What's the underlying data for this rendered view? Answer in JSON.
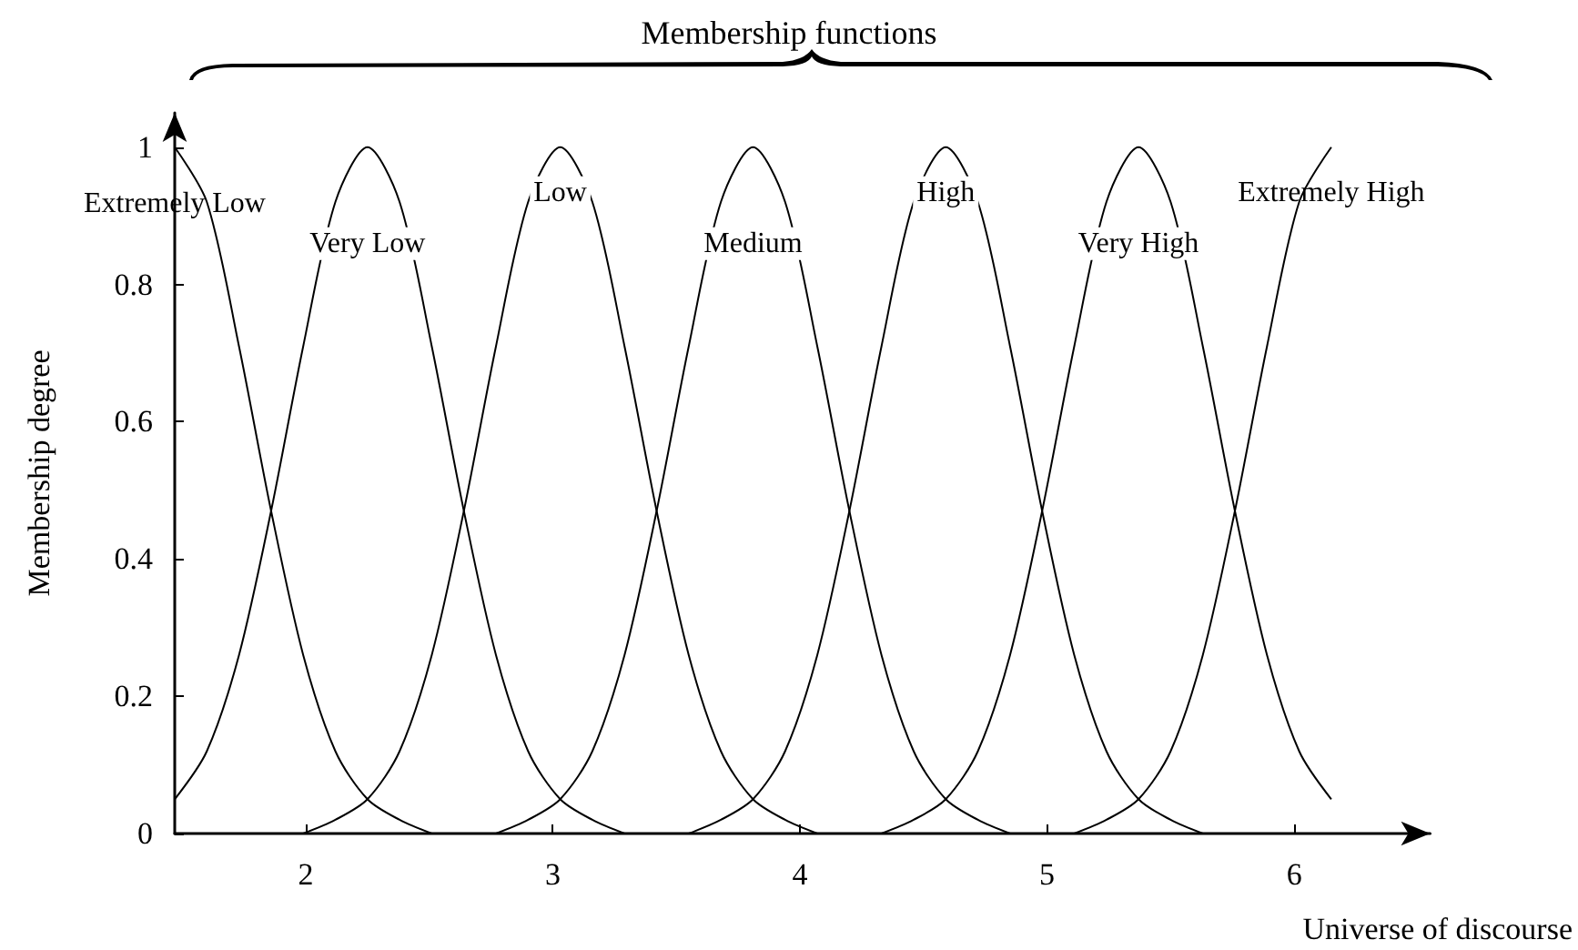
{
  "chart_data": {
    "type": "line",
    "title": "Membership functions",
    "xlabel": "Universe of discourse",
    "ylabel": "Membership degree",
    "xlim": [
      1.47,
      6.55
    ],
    "xticks": [
      2,
      3,
      4,
      5,
      6
    ],
    "ylim": [
      0,
      1.05
    ],
    "yticks": [
      0,
      0.2,
      0.4,
      0.6,
      0.8,
      1
    ],
    "grid": false,
    "legend": false,
    "marker": "none",
    "line_style": "solid",
    "series": [
      {
        "name": "Extremely Low",
        "color": "#000000",
        "x": [
          1.47,
          1.6,
          1.73,
          1.86,
          1.99,
          2.12,
          2.25,
          2.38,
          2.51
        ],
        "values": [
          1,
          0.92,
          0.71,
          0.47,
          0.26,
          0.12,
          0.05,
          0.02,
          0
        ]
      },
      {
        "name": "Very Low",
        "color": "#000000",
        "x": [
          1.47,
          1.6,
          1.73,
          1.86,
          1.99,
          2.12,
          2.25,
          2.38,
          2.51,
          2.64,
          2.77,
          2.9,
          3.03,
          3.16,
          3.29
        ],
        "values": [
          0.05,
          0.12,
          0.26,
          0.47,
          0.71,
          0.92,
          1,
          0.92,
          0.71,
          0.47,
          0.26,
          0.12,
          0.05,
          0.02,
          0
        ]
      },
      {
        "name": "Low",
        "color": "#000000",
        "x": [
          1.99,
          2.12,
          2.25,
          2.38,
          2.51,
          2.64,
          2.77,
          2.9,
          3.03,
          3.16,
          3.29,
          3.42,
          3.55,
          3.68,
          3.81,
          3.94,
          4.07
        ],
        "values": [
          0,
          0.02,
          0.05,
          0.12,
          0.26,
          0.47,
          0.71,
          0.92,
          1,
          0.92,
          0.71,
          0.47,
          0.26,
          0.12,
          0.05,
          0.02,
          0
        ]
      },
      {
        "name": "Medium",
        "color": "#000000",
        "x": [
          2.77,
          2.9,
          3.03,
          3.16,
          3.29,
          3.42,
          3.55,
          3.68,
          3.81,
          3.94,
          4.07,
          4.2,
          4.33,
          4.46,
          4.59,
          4.72,
          4.85
        ],
        "values": [
          0,
          0.02,
          0.05,
          0.12,
          0.26,
          0.47,
          0.71,
          0.92,
          1,
          0.92,
          0.71,
          0.47,
          0.26,
          0.12,
          0.05,
          0.02,
          0
        ]
      },
      {
        "name": "High",
        "color": "#000000",
        "x": [
          3.55,
          3.68,
          3.81,
          3.94,
          4.07,
          4.2,
          4.33,
          4.46,
          4.59,
          4.72,
          4.85,
          4.98,
          5.11,
          5.24,
          5.37,
          5.5,
          5.63
        ],
        "values": [
          0,
          0.02,
          0.05,
          0.12,
          0.26,
          0.47,
          0.71,
          0.92,
          1,
          0.92,
          0.71,
          0.47,
          0.26,
          0.12,
          0.05,
          0.02,
          0
        ]
      },
      {
        "name": "Very High",
        "color": "#000000",
        "x": [
          4.33,
          4.46,
          4.59,
          4.72,
          4.85,
          4.98,
          5.11,
          5.24,
          5.37,
          5.5,
          5.63,
          5.76,
          5.89,
          6.02,
          6.15
        ],
        "values": [
          0,
          0.02,
          0.05,
          0.12,
          0.26,
          0.47,
          0.71,
          0.92,
          1,
          0.92,
          0.71,
          0.47,
          0.26,
          0.12,
          0.05
        ]
      },
      {
        "name": "Extremely High",
        "color": "#000000",
        "x": [
          5.11,
          5.24,
          5.37,
          5.5,
          5.63,
          5.76,
          5.89,
          6.02,
          6.15
        ],
        "values": [
          0,
          0.02,
          0.05,
          0.12,
          0.26,
          0.47,
          0.71,
          0.92,
          1
        ]
      }
    ]
  }
}
